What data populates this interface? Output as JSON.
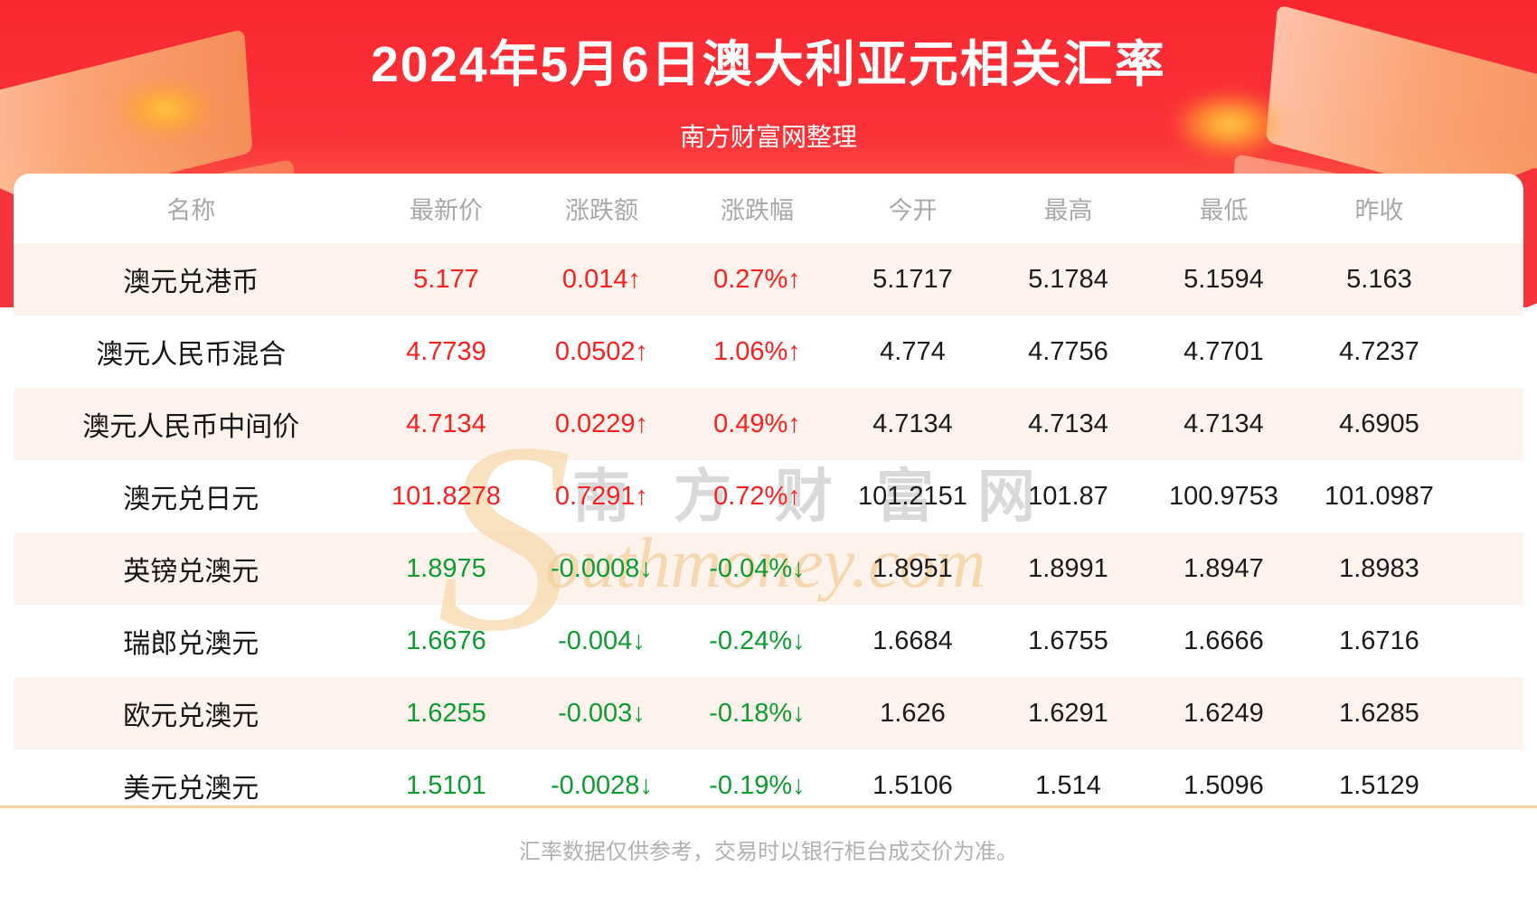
{
  "header": {
    "title": "2024年5月6日澳大利亚元相关汇率",
    "subtitle": "南方财富网整理"
  },
  "table": {
    "columns": [
      "名称",
      "最新价",
      "涨跌额",
      "涨跌幅",
      "今开",
      "最高",
      "最低",
      "昨收"
    ],
    "up_arrow": "↑",
    "down_arrow": "↓",
    "rows": [
      {
        "name": "澳元兑港币",
        "direction": "up",
        "last": "5.177",
        "change": "0.014",
        "pct": "0.27%",
        "open": "5.1717",
        "high": "5.1784",
        "low": "5.1594",
        "prev_close": "5.163"
      },
      {
        "name": "澳元人民币混合",
        "direction": "up",
        "last": "4.7739",
        "change": "0.0502",
        "pct": "1.06%",
        "open": "4.774",
        "high": "4.7756",
        "low": "4.7701",
        "prev_close": "4.7237"
      },
      {
        "name": "澳元人民币中间价",
        "direction": "up",
        "last": "4.7134",
        "change": "0.0229",
        "pct": "0.49%",
        "open": "4.7134",
        "high": "4.7134",
        "low": "4.7134",
        "prev_close": "4.6905"
      },
      {
        "name": "澳元兑日元",
        "direction": "up",
        "last": "101.8278",
        "change": "0.7291",
        "pct": "0.72%",
        "open": "101.2151",
        "high": "101.87",
        "low": "100.9753",
        "prev_close": "101.0987"
      },
      {
        "name": "英镑兑澳元",
        "direction": "down",
        "last": "1.8975",
        "change": "-0.0008",
        "pct": "-0.04%",
        "open": "1.8951",
        "high": "1.8991",
        "low": "1.8947",
        "prev_close": "1.8983"
      },
      {
        "name": "瑞郎兑澳元",
        "direction": "down",
        "last": "1.6676",
        "change": "-0.004",
        "pct": "-0.24%",
        "open": "1.6684",
        "high": "1.6755",
        "low": "1.6666",
        "prev_close": "1.6716"
      },
      {
        "name": "欧元兑澳元",
        "direction": "down",
        "last": "1.6255",
        "change": "-0.003",
        "pct": "-0.18%",
        "open": "1.626",
        "high": "1.6291",
        "low": "1.6249",
        "prev_close": "1.6285"
      },
      {
        "name": "美元兑澳元",
        "direction": "down",
        "last": "1.5101",
        "change": "-0.0028",
        "pct": "-0.19%",
        "open": "1.5106",
        "high": "1.514",
        "low": "1.5096",
        "prev_close": "1.5129"
      }
    ]
  },
  "watermark": {
    "s_letter": "S",
    "cn_text": "南方财富网",
    "en_text": "outhmoney.com"
  },
  "footer": {
    "note": "汇率数据仅供参考，交易时以银行柜台成交价为准。"
  },
  "colors": {
    "banner_red_top": "#f92730",
    "up_red": "#fb1f1f",
    "down_green": "#0e9b31",
    "row_pink": "#fdf2ec",
    "divider_tan": "#f7d4a1",
    "header_text_gray": "#a8a8a8",
    "footer_text_gray": "#b1b1b1",
    "number_black": "#1b1b1b"
  },
  "chart_data": {
    "type": "table",
    "title": "2024年5月6日澳大利亚元相关汇率",
    "subtitle": "南方财富网整理",
    "columns": [
      "名称",
      "最新价",
      "涨跌额",
      "涨跌幅",
      "今开",
      "最高",
      "最低",
      "昨收"
    ],
    "rows": [
      [
        "澳元兑港币",
        "5.177",
        "0.014↑",
        "0.27%↑",
        "5.1717",
        "5.1784",
        "5.1594",
        "5.163"
      ],
      [
        "澳元人民币混合",
        "4.7739",
        "0.0502↑",
        "1.06%↑",
        "4.774",
        "4.7756",
        "4.7701",
        "4.7237"
      ],
      [
        "澳元人民币中间价",
        "4.7134",
        "0.0229↑",
        "0.49%↑",
        "4.7134",
        "4.7134",
        "4.7134",
        "4.6905"
      ],
      [
        "澳元兑日元",
        "101.8278",
        "0.7291↑",
        "0.72%↑",
        "101.2151",
        "101.87",
        "100.9753",
        "101.0987"
      ],
      [
        "英镑兑澳元",
        "1.8975",
        "-0.0008↓",
        "-0.04%↓",
        "1.8951",
        "1.8991",
        "1.8947",
        "1.8983"
      ],
      [
        "瑞郎兑澳元",
        "1.6676",
        "-0.004↓",
        "-0.24%↓",
        "1.6684",
        "1.6755",
        "1.6666",
        "1.6716"
      ],
      [
        "欧元兑澳元",
        "1.6255",
        "-0.003↓",
        "-0.18%↓",
        "1.626",
        "1.6291",
        "1.6249",
        "1.6285"
      ],
      [
        "美元兑澳元",
        "1.5101",
        "-0.0028↓",
        "-0.19%↓",
        "1.5106",
        "1.514",
        "1.5096",
        "1.5129"
      ]
    ],
    "note": "汇率数据仅供参考，交易时以银行柜台成交价为准。",
    "legend": {
      "up_color_red": "rise",
      "down_color_green": "fall"
    }
  }
}
